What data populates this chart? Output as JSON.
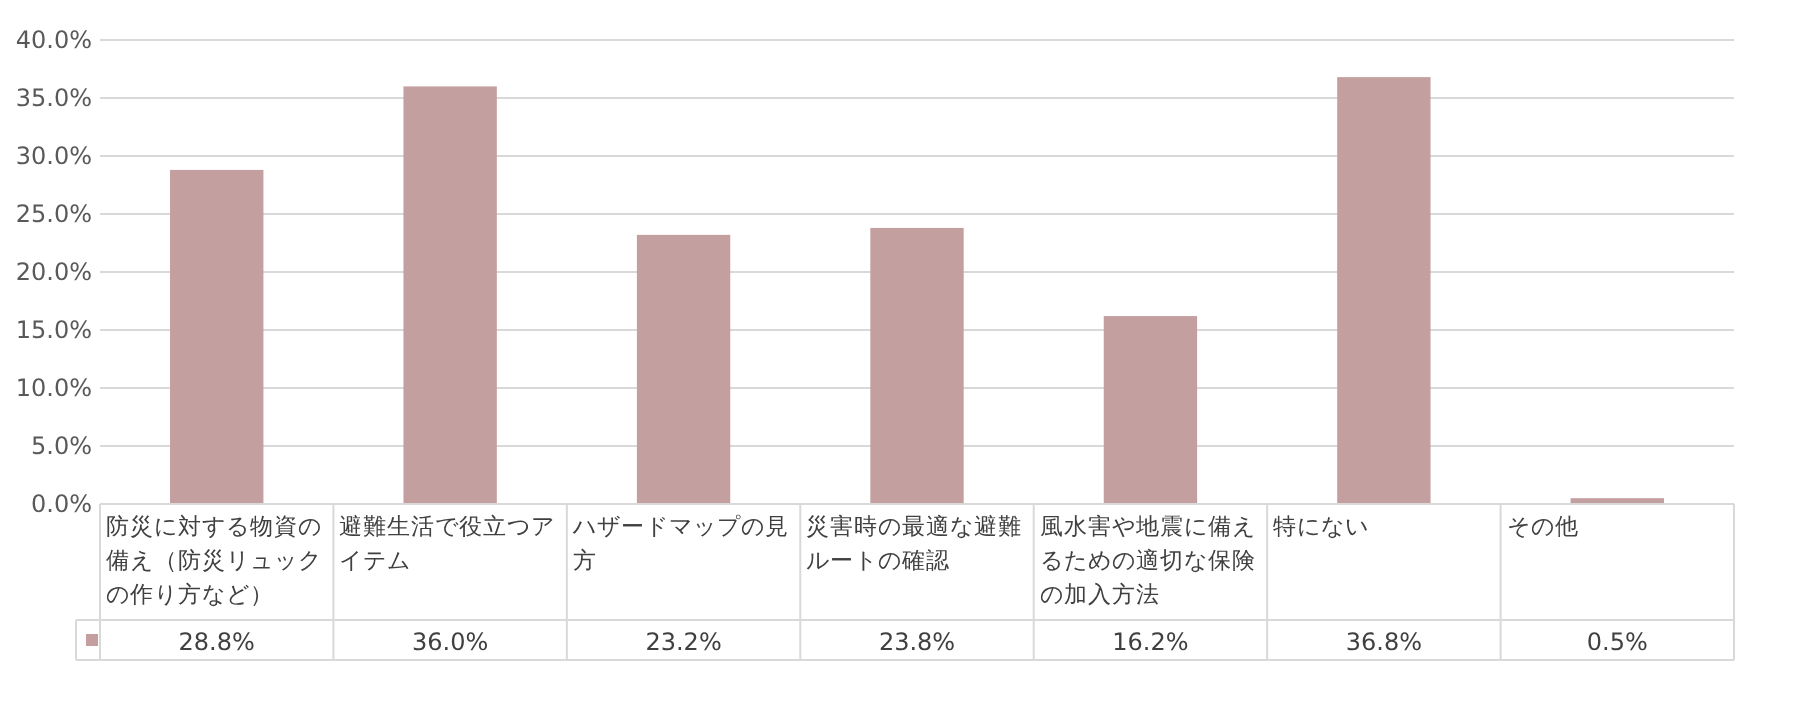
{
  "chart_data": {
    "type": "bar",
    "categories": [
      "防災に対する物資の備え（防災リュックの作り方など）",
      "避難生活で役立つアイテム",
      "ハザードマップの見方",
      "災害時の最適な避難ルートの確認",
      "風水害や地震に備えるための適切な保険の加入方法",
      "特にない",
      "その他"
    ],
    "values": [
      28.8,
      36.0,
      23.2,
      23.8,
      16.2,
      36.8,
      0.5
    ],
    "value_labels": [
      "28.8%",
      "36.0%",
      "23.2%",
      "23.8%",
      "16.2%",
      "36.8%",
      "0.5%"
    ],
    "color": "#c49f9f",
    "ylim": [
      0,
      40
    ],
    "yticks": [
      {
        "value": 0,
        "label": "0.0%"
      },
      {
        "value": 5,
        "label": "5.0%"
      },
      {
        "value": 10,
        "label": "10.0%"
      },
      {
        "value": 15,
        "label": "15.0%"
      },
      {
        "value": 20,
        "label": "20.0%"
      },
      {
        "value": 25,
        "label": "25.0%"
      },
      {
        "value": 30,
        "label": "30.0%"
      },
      {
        "value": 35,
        "label": "35.0%"
      },
      {
        "value": 40,
        "label": "40.0%"
      }
    ],
    "grid": "y"
  }
}
